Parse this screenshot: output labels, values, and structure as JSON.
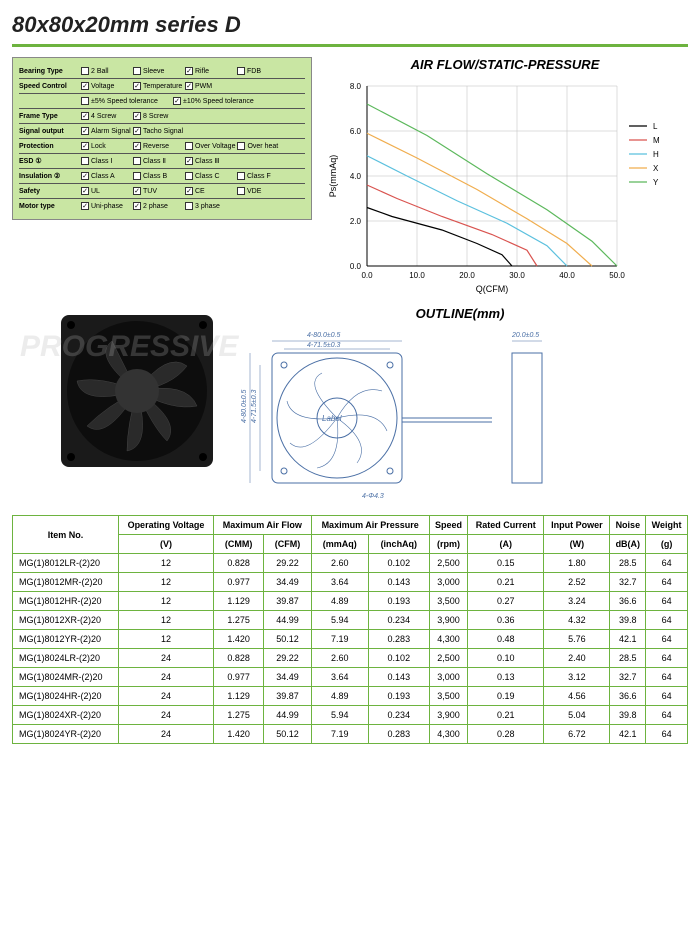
{
  "title": "80x80x20mm series D",
  "params": [
    {
      "label": "Bearing Type",
      "opts": [
        {
          "t": "2 Ball",
          "c": false
        },
        {
          "t": "Sleeve",
          "c": false
        },
        {
          "t": "Rifle",
          "c": true
        },
        {
          "t": "FDB",
          "c": false
        }
      ]
    },
    {
      "label": "Speed Control",
      "rows": [
        [
          {
            "t": "Voltage",
            "c": true
          },
          {
            "t": "Temperature",
            "c": true
          },
          {
            "t": "PWM",
            "c": true
          }
        ],
        [
          {
            "t": "±5% Speed tolerance",
            "c": false,
            "w": true
          },
          {
            "t": "±10% Speed tolerance",
            "c": true,
            "w": true
          }
        ]
      ]
    },
    {
      "label": "Frame Type",
      "opts": [
        {
          "t": "4 Screw",
          "c": true
        },
        {
          "t": "8 Screw",
          "c": true
        }
      ]
    },
    {
      "label": "Signal output",
      "opts": [
        {
          "t": "Alarm Signal",
          "c": true
        },
        {
          "t": "Tacho Signal",
          "c": true
        }
      ]
    },
    {
      "label": "Protection",
      "opts": [
        {
          "t": "Lock",
          "c": true
        },
        {
          "t": "Reverse",
          "c": true
        },
        {
          "t": "Over Voltage",
          "c": false
        },
        {
          "t": "Over heat",
          "c": false
        }
      ]
    },
    {
      "label": "ESD ①",
      "opts": [
        {
          "t": "Class Ⅰ",
          "c": false
        },
        {
          "t": "Class Ⅱ",
          "c": false
        },
        {
          "t": "Class Ⅲ",
          "c": true
        }
      ]
    },
    {
      "label": "Insulation ②",
      "opts": [
        {
          "t": "Class A",
          "c": true
        },
        {
          "t": "Class B",
          "c": false
        },
        {
          "t": "Class C",
          "c": false
        },
        {
          "t": "Class F",
          "c": false
        }
      ]
    },
    {
      "label": "Safety",
      "opts": [
        {
          "t": "UL",
          "c": true
        },
        {
          "t": "TUV",
          "c": true
        },
        {
          "t": "CE",
          "c": true
        },
        {
          "t": "VDE",
          "c": false
        }
      ]
    },
    {
      "label": "Motor type",
      "opts": [
        {
          "t": "Uni-phase",
          "c": true
        },
        {
          "t": "2 phase",
          "c": true
        },
        {
          "t": "3 phase",
          "c": false
        }
      ]
    }
  ],
  "chart": {
    "title": "AIR FLOW/STATIC-PRESSURE",
    "xlabel": "Q(CFM)",
    "ylabel": "Ps(mmAq)",
    "xlim": [
      0,
      50
    ],
    "ylim": [
      0,
      8
    ],
    "xtick": 10,
    "ytick": 2,
    "grid_color": "#bdbdbd",
    "bg": "#ffffff",
    "series": [
      {
        "name": "L",
        "color": "#000000",
        "pts": [
          [
            0,
            2.6
          ],
          [
            5,
            2.2
          ],
          [
            15,
            1.6
          ],
          [
            22,
            1.0
          ],
          [
            27,
            0.5
          ],
          [
            29,
            0
          ]
        ]
      },
      {
        "name": "M",
        "color": "#d9534f",
        "pts": [
          [
            0,
            3.6
          ],
          [
            6,
            3.0
          ],
          [
            15,
            2.2
          ],
          [
            25,
            1.4
          ],
          [
            32,
            0.7
          ],
          [
            34,
            0
          ]
        ]
      },
      {
        "name": "H",
        "color": "#5bc0de",
        "pts": [
          [
            0,
            4.9
          ],
          [
            8,
            4.0
          ],
          [
            18,
            2.9
          ],
          [
            28,
            1.9
          ],
          [
            36,
            0.9
          ],
          [
            40,
            0
          ]
        ]
      },
      {
        "name": "X",
        "color": "#f0ad4e",
        "pts": [
          [
            0,
            5.9
          ],
          [
            10,
            4.8
          ],
          [
            22,
            3.4
          ],
          [
            32,
            2.1
          ],
          [
            40,
            1.0
          ],
          [
            45,
            0
          ]
        ]
      },
      {
        "name": "Y",
        "color": "#5cb85c",
        "pts": [
          [
            0,
            7.2
          ],
          [
            12,
            5.8
          ],
          [
            24,
            4.1
          ],
          [
            36,
            2.5
          ],
          [
            45,
            1.1
          ],
          [
            50,
            0
          ]
        ]
      }
    ]
  },
  "outline": {
    "title": "OUTLINE(mm)",
    "dims": {
      "w": "4-80.0±0.5",
      "hole_sp": "4-71.5±0.3",
      "hole_d": "4-Φ4.3",
      "thick": "20.0±0.5"
    }
  },
  "spec_headers": {
    "top": [
      "Item No.",
      "Operating Voltage",
      "Maximum Air Flow",
      "Maximum Air Pressure",
      "Speed",
      "Rated Current",
      "Input Power",
      "Noise",
      "Weight"
    ],
    "sub": [
      "(V)",
      "(CMM)",
      "(CFM)",
      "(mmAq)",
      "(inchAq)",
      "(rpm)",
      "(A)",
      "(W)",
      "dB(A)",
      "(g)"
    ]
  },
  "spec_rows": [
    [
      "MG(1)8012LR-(2)20",
      "12",
      "0.828",
      "29.22",
      "2.60",
      "0.102",
      "2,500",
      "0.15",
      "1.80",
      "28.5",
      "64"
    ],
    [
      "MG(1)8012MR-(2)20",
      "12",
      "0.977",
      "34.49",
      "3.64",
      "0.143",
      "3,000",
      "0.21",
      "2.52",
      "32.7",
      "64"
    ],
    [
      "MG(1)8012HR-(2)20",
      "12",
      "1.129",
      "39.87",
      "4.89",
      "0.193",
      "3,500",
      "0.27",
      "3.24",
      "36.6",
      "64"
    ],
    [
      "MG(1)8012XR-(2)20",
      "12",
      "1.275",
      "44.99",
      "5.94",
      "0.234",
      "3,900",
      "0.36",
      "4.32",
      "39.8",
      "64"
    ],
    [
      "MG(1)8012YR-(2)20",
      "12",
      "1.420",
      "50.12",
      "7.19",
      "0.283",
      "4,300",
      "0.48",
      "5.76",
      "42.1",
      "64"
    ],
    [
      "MG(1)8024LR-(2)20",
      "24",
      "0.828",
      "29.22",
      "2.60",
      "0.102",
      "2,500",
      "0.10",
      "2.40",
      "28.5",
      "64"
    ],
    [
      "MG(1)8024MR-(2)20",
      "24",
      "0.977",
      "34.49",
      "3.64",
      "0.143",
      "3,000",
      "0.13",
      "3.12",
      "32.7",
      "64"
    ],
    [
      "MG(1)8024HR-(2)20",
      "24",
      "1.129",
      "39.87",
      "4.89",
      "0.193",
      "3,500",
      "0.19",
      "4.56",
      "36.6",
      "64"
    ],
    [
      "MG(1)8024XR-(2)20",
      "24",
      "1.275",
      "44.99",
      "5.94",
      "0.234",
      "3,900",
      "0.21",
      "5.04",
      "39.8",
      "64"
    ],
    [
      "MG(1)8024YR-(2)20",
      "24",
      "1.420",
      "50.12",
      "7.19",
      "0.283",
      "4,300",
      "0.28",
      "6.72",
      "42.1",
      "64"
    ]
  ],
  "colors": {
    "accent": "#6db33f",
    "param_bg": "#c9e6a3",
    "line": "#4a6fa5"
  }
}
